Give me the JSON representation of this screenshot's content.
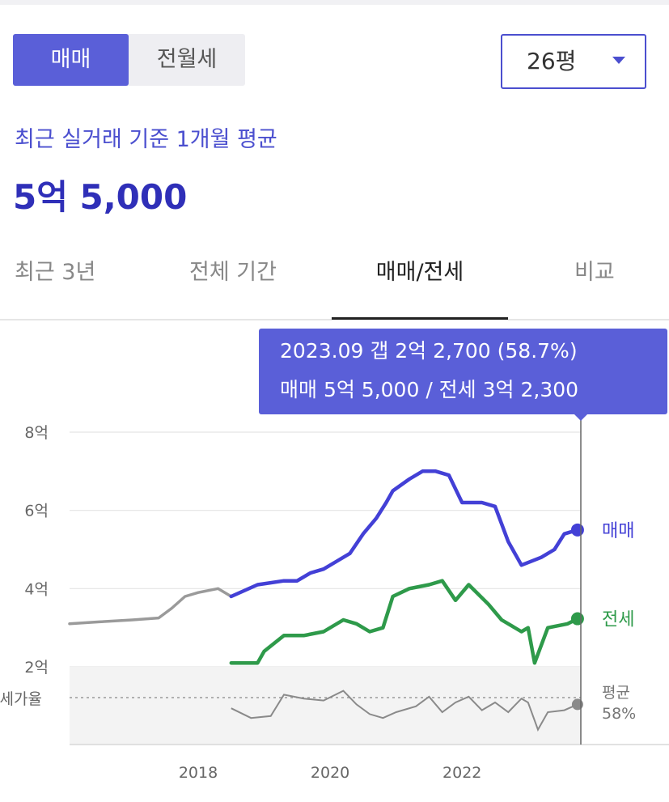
{
  "segment": {
    "sale": "매매",
    "rent": "전월세"
  },
  "size_selector": {
    "value": "26평",
    "icon": "chevron-down-icon"
  },
  "summary": {
    "caption": "최근 실거래 기준 1개월 평균",
    "price": "5억 5,000"
  },
  "tabs": [
    {
      "label": "최근 3년",
      "active": false
    },
    {
      "label": "전체 기간",
      "active": false
    },
    {
      "label": "매매/전세",
      "active": true
    },
    {
      "label": "비교",
      "active": false
    }
  ],
  "colors": {
    "accent": "#5a5fd8",
    "sale": "#4340d6",
    "jeonse": "#2e9a4a",
    "old": "#9a9a9a",
    "ratio": "#8a8a8a"
  },
  "chart_data": {
    "type": "line",
    "x_ticks": [
      "2018",
      "2020",
      "2022"
    ],
    "y_ticks": [
      "8억",
      "6억",
      "4억",
      "2억"
    ],
    "ylim_eok": [
      2,
      8
    ],
    "xlim_year": [
      2016.05,
      2023.8
    ],
    "tooltip": {
      "line1": "2023.09  갭 2억 2,700 (58.7%)",
      "line2": "매매 5억 5,000 / 전세 3억 2,300"
    },
    "series": [
      {
        "name": "",
        "key": "old",
        "x": [
          2016.05,
          2016.5,
          2017.0,
          2017.4,
          2017.6,
          2017.8,
          2018.0,
          2018.3,
          2018.5
        ],
        "y": [
          3.1,
          3.15,
          3.2,
          3.25,
          3.5,
          3.8,
          3.9,
          4.0,
          3.8
        ]
      },
      {
        "name": "매매",
        "key": "sale",
        "x": [
          2018.5,
          2018.9,
          2019.3,
          2019.5,
          2019.7,
          2019.9,
          2020.1,
          2020.3,
          2020.5,
          2020.7,
          2020.85,
          2020.95,
          2021.2,
          2021.4,
          2021.6,
          2021.8,
          2022.0,
          2022.3,
          2022.5,
          2022.7,
          2022.9,
          2023.2,
          2023.4,
          2023.55,
          2023.75
        ],
        "y": [
          3.8,
          4.1,
          4.2,
          4.2,
          4.4,
          4.5,
          4.7,
          4.9,
          5.4,
          5.8,
          6.2,
          6.5,
          6.8,
          7.0,
          7.0,
          6.9,
          6.2,
          6.2,
          6.1,
          5.2,
          4.6,
          4.8,
          5.0,
          5.4,
          5.5
        ]
      },
      {
        "name": "전세",
        "key": "jeonse",
        "x": [
          2018.5,
          2018.9,
          2019.0,
          2019.3,
          2019.6,
          2019.9,
          2020.2,
          2020.4,
          2020.6,
          2020.8,
          2020.95,
          2021.2,
          2021.5,
          2021.7,
          2021.9,
          2022.1,
          2022.4,
          2022.6,
          2022.9,
          2023.0,
          2023.1,
          2023.3,
          2023.6,
          2023.75
        ],
        "y": [
          2.1,
          2.1,
          2.4,
          2.8,
          2.8,
          2.9,
          3.2,
          3.1,
          2.9,
          3.0,
          3.8,
          4.0,
          4.1,
          4.2,
          3.7,
          4.1,
          3.6,
          3.2,
          2.9,
          3.0,
          2.1,
          3.0,
          3.1,
          3.23
        ]
      }
    ],
    "ratio": {
      "label": "전세가율",
      "avg_label": "평균",
      "avg_value": "58%",
      "x": [
        2018.5,
        2018.8,
        2019.1,
        2019.3,
        2019.6,
        2019.9,
        2020.2,
        2020.4,
        2020.6,
        2020.8,
        2021.0,
        2021.3,
        2021.5,
        2021.7,
        2021.9,
        2022.1,
        2022.3,
        2022.5,
        2022.7,
        2022.9,
        2023.0,
        2023.15,
        2023.3,
        2023.55,
        2023.75
      ],
      "y": [
        57,
        52,
        53,
        64,
        62,
        61,
        66,
        59,
        54,
        52,
        55,
        58,
        63,
        55,
        60,
        63,
        56,
        60,
        55,
        62,
        60,
        46,
        55,
        56,
        59
      ]
    }
  }
}
